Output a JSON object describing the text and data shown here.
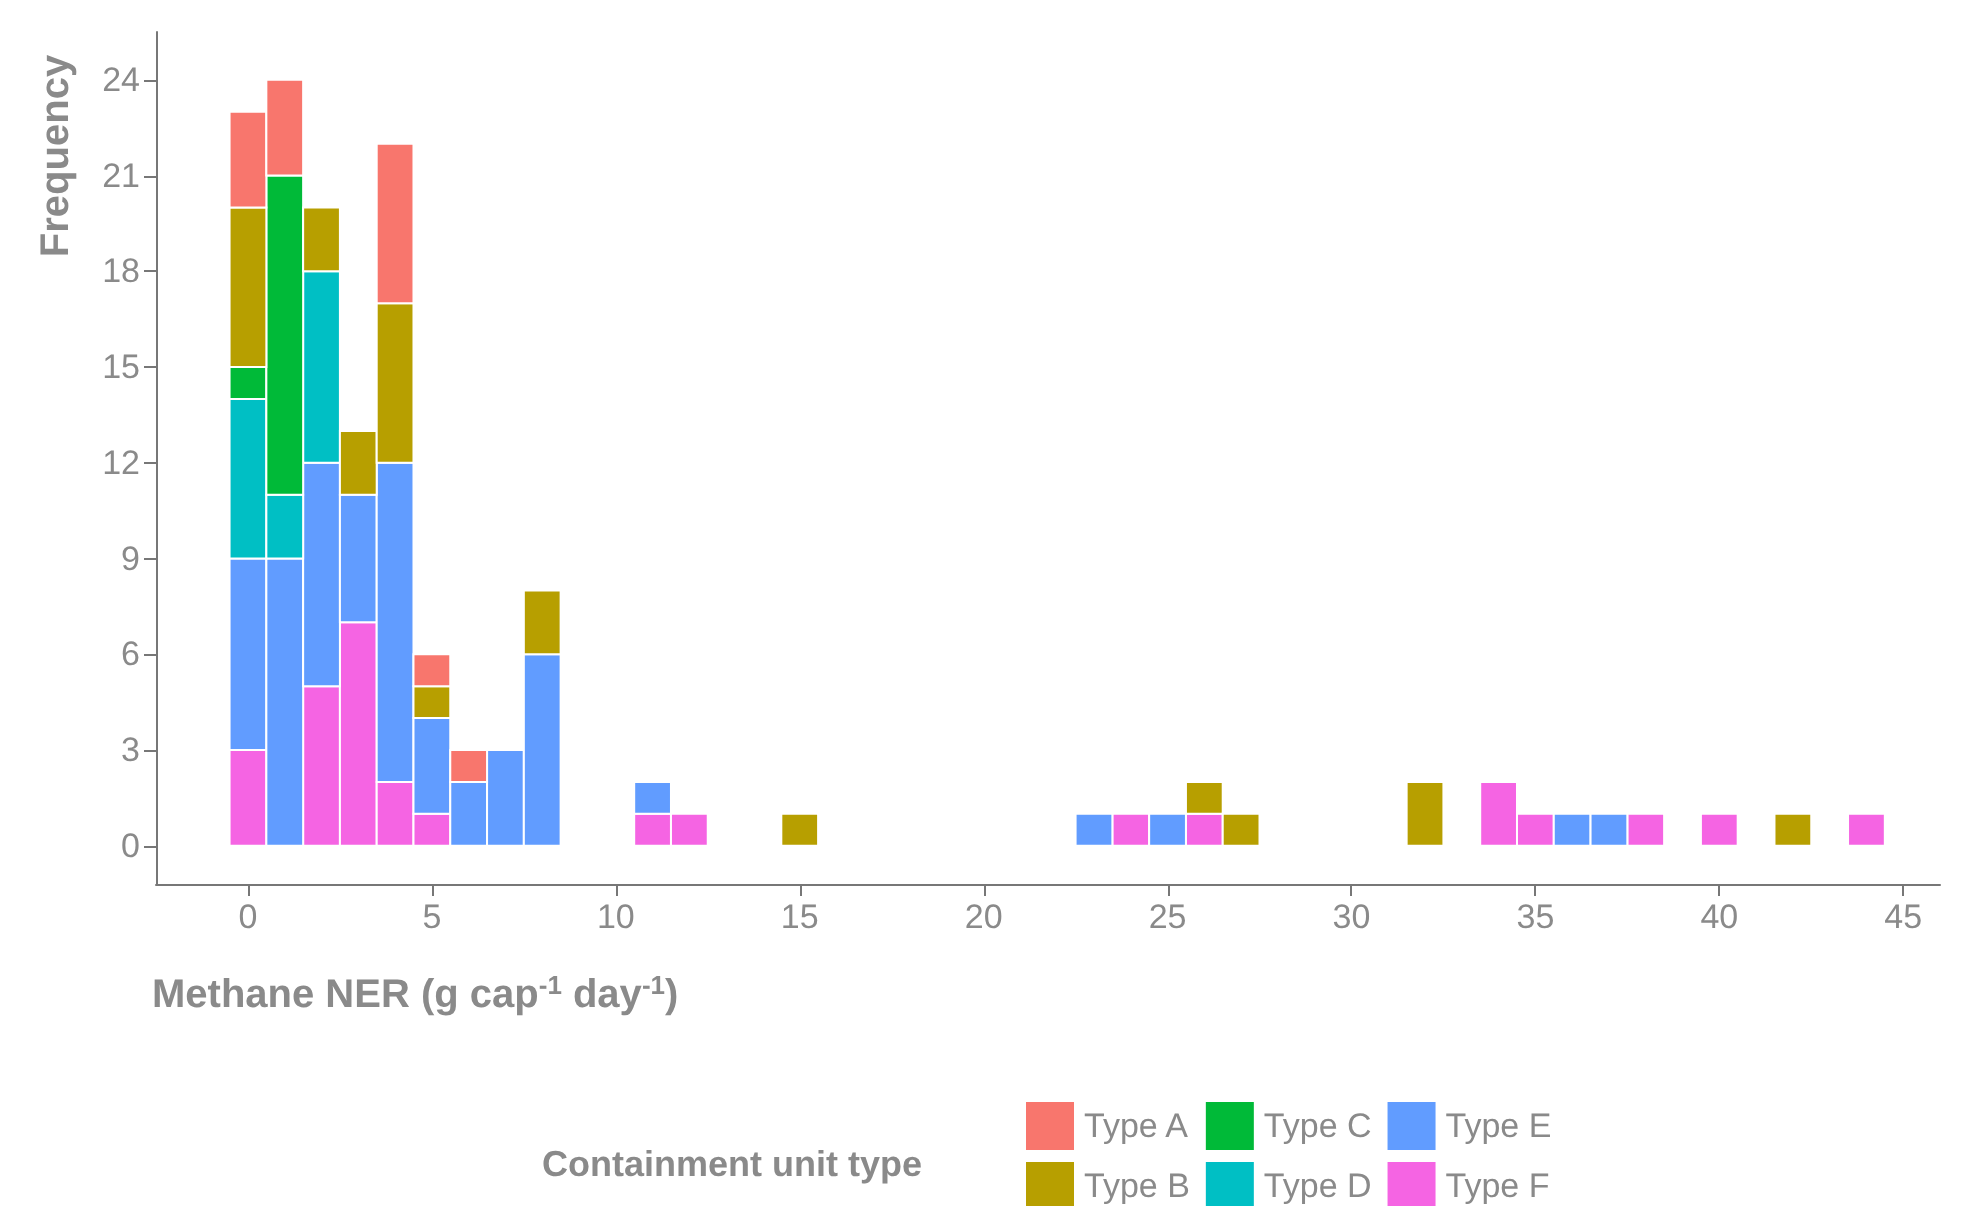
{
  "chart_data": {
    "type": "bar",
    "xlabel": "Methane NER (g cap$^{-1}$ day$^{-1}$)",
    "ylabel": "Frequency",
    "legend_title": "Containment unit type",
    "stacked": true,
    "legend": "bottom",
    "grid": false,
    "x": [
      0,
      1,
      2,
      3,
      4,
      5,
      6,
      7,
      8,
      11,
      12,
      15,
      23,
      24,
      25,
      26,
      27,
      32,
      34,
      35,
      36,
      37,
      38,
      40,
      42,
      44
    ],
    "xlim": [
      -2.5,
      46
    ],
    "xticks": [
      0,
      5,
      10,
      15,
      20,
      25,
      30,
      35,
      40,
      45
    ],
    "ylim": [
      -1.2,
      25.5
    ],
    "yticks": [
      0,
      3,
      6,
      9,
      12,
      15,
      18,
      21,
      24
    ],
    "series": [
      {
        "name": "Type F",
        "color": "#f564e3",
        "values": [
          3,
          0,
          5,
          7,
          2,
          1,
          0,
          0,
          0,
          1,
          1,
          0,
          0,
          1,
          0,
          1,
          0,
          0,
          2,
          1,
          0,
          0,
          1,
          1,
          0,
          1
        ]
      },
      {
        "name": "Type E",
        "color": "#619cff",
        "values": [
          6,
          9,
          7,
          4,
          10,
          3,
          2,
          3,
          6,
          1,
          0,
          0,
          1,
          0,
          1,
          0,
          0,
          0,
          0,
          0,
          1,
          1,
          0,
          0,
          0,
          0
        ]
      },
      {
        "name": "Type D",
        "color": "#00bfc4",
        "values": [
          5,
          2,
          6,
          0,
          0,
          0,
          0,
          0,
          0,
          0,
          0,
          0,
          0,
          0,
          0,
          0,
          0,
          0,
          0,
          0,
          0,
          0,
          0,
          0,
          0,
          0
        ]
      },
      {
        "name": "Type C",
        "color": "#00ba38",
        "values": [
          1,
          10,
          0,
          0,
          0,
          0,
          0,
          0,
          0,
          0,
          0,
          0,
          0,
          0,
          0,
          0,
          0,
          0,
          0,
          0,
          0,
          0,
          0,
          0,
          0,
          0
        ]
      },
      {
        "name": "Type B",
        "color": "#b79f00",
        "values": [
          5,
          0,
          2,
          2,
          5,
          1,
          0,
          0,
          2,
          0,
          0,
          1,
          0,
          0,
          0,
          1,
          1,
          2,
          0,
          0,
          0,
          0,
          0,
          0,
          1,
          0
        ]
      },
      {
        "name": "Type A",
        "color": "#f8766d",
        "values": [
          3,
          3,
          0,
          0,
          5,
          1,
          1,
          0,
          0,
          0,
          0,
          0,
          0,
          0,
          0,
          0,
          0,
          0,
          0,
          0,
          0,
          0,
          0,
          0,
          0,
          0
        ]
      }
    ]
  }
}
